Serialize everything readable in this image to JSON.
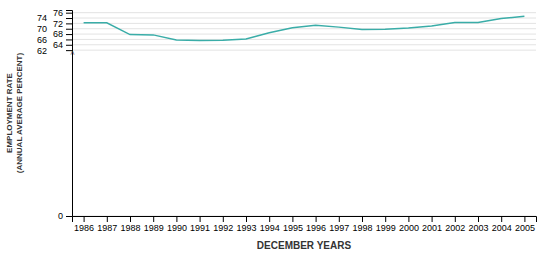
{
  "chart_data": {
    "type": "line",
    "x": [
      1986,
      1987,
      1988,
      1989,
      1990,
      1991,
      1992,
      1993,
      1994,
      1995,
      1996,
      1997,
      1998,
      1999,
      2000,
      2001,
      2002,
      2003,
      2004,
      2005
    ],
    "values": [
      72.2,
      72.2,
      67.8,
      67.7,
      65.8,
      65.6,
      65.7,
      66.2,
      68.5,
      70.4,
      71.3,
      70.6,
      69.7,
      69.8,
      70.3,
      71.0,
      72.3,
      72.3,
      73.8,
      74.7
    ],
    "color": "#3aada8",
    "xlabel": "DECEMBER YEARS",
    "ylabel": "EMPLOYMENT RATE\n(ANNUAL AVERAGE PERCENT)",
    "xlim": [
      1985.5,
      2005.5
    ],
    "xticks": [
      1986,
      1987,
      1988,
      1989,
      1990,
      1991,
      1992,
      1993,
      1994,
      1995,
      1996,
      1997,
      1998,
      1999,
      2000,
      2001,
      2002,
      2003,
      2004,
      2005
    ],
    "ylim": [
      0,
      77
    ],
    "yticks": [
      0,
      62,
      64,
      66,
      68,
      70,
      72,
      74,
      76
    ],
    "grid": true,
    "annotations": [
      {
        "text": "<",
        "x": 1985.5,
        "y": 61.0
      }
    ]
  }
}
